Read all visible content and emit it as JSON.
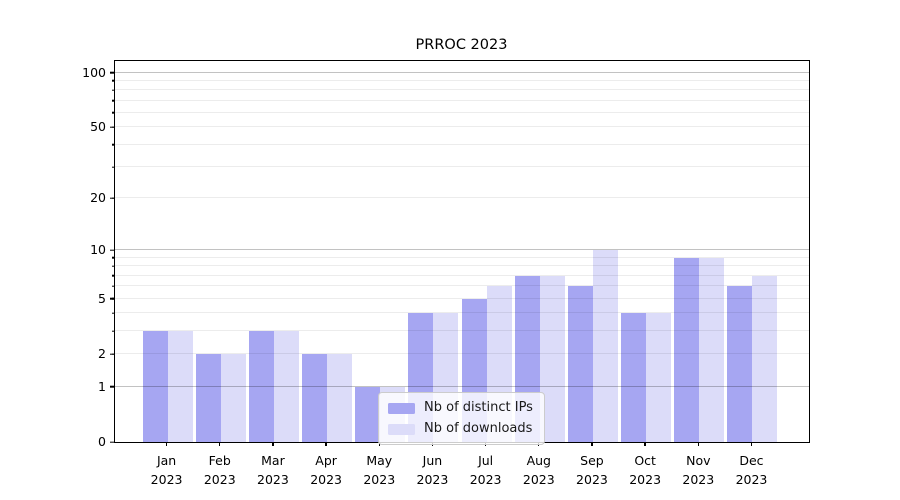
{
  "chart_data": {
    "type": "bar",
    "title": "PRROC 2023",
    "categories": [
      "Jan",
      "Feb",
      "Mar",
      "Apr",
      "May",
      "Jun",
      "Jul",
      "Aug",
      "Sep",
      "Oct",
      "Nov",
      "Dec"
    ],
    "year_label": "2023",
    "series": [
      {
        "name": "Nb of distinct IPs",
        "color": "#a6a6f2",
        "values": [
          3,
          2,
          3,
          2,
          1,
          4,
          5,
          7,
          6,
          4,
          9,
          6
        ]
      },
      {
        "name": "Nb of downloads",
        "color": "#dcdcf9",
        "values": [
          3,
          2,
          3,
          2,
          1,
          4,
          6,
          7,
          10,
          4,
          9,
          7
        ]
      }
    ],
    "y_axis": {
      "scale": "log1p",
      "tick_labels": [
        100,
        50,
        20,
        10,
        5,
        2,
        1,
        0
      ],
      "major_gridlines": [
        1,
        10,
        100
      ],
      "minor_gridlines": [
        2,
        3,
        4,
        5,
        6,
        7,
        8,
        9,
        20,
        30,
        40,
        50,
        60,
        70,
        80,
        90
      ],
      "top_value": 115.6,
      "ylim": [
        0,
        115.6
      ]
    },
    "legend": {
      "position": "lower center"
    },
    "grid": true
  },
  "colors": {
    "background": "#ffffff",
    "spine": "#000000",
    "grid_major": "#c3c3c3",
    "grid_minor": "#ececec",
    "legend_border": "#cccccc",
    "legend_background": "rgba(255,255,255,0.8)"
  }
}
